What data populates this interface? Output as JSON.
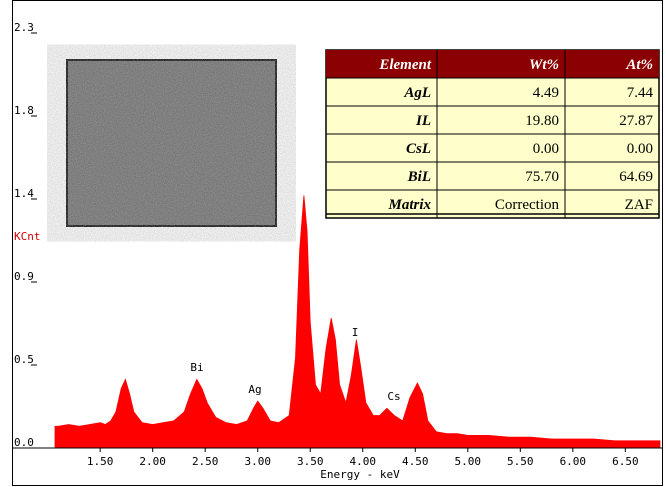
{
  "chart_data": {
    "type": "area",
    "xlabel": "Energy - keV",
    "ylabel": "KCnt",
    "color": "#ff0000",
    "x": [
      1.07,
      1.1,
      1.2,
      1.3,
      1.4,
      1.5,
      1.55,
      1.6,
      1.65,
      1.7,
      1.74,
      1.78,
      1.82,
      1.9,
      2.0,
      2.1,
      2.2,
      2.3,
      2.36,
      2.42,
      2.47,
      2.52,
      2.6,
      2.7,
      2.8,
      2.9,
      2.96,
      3.0,
      3.05,
      3.12,
      3.2,
      3.3,
      3.36,
      3.4,
      3.44,
      3.47,
      3.5,
      3.55,
      3.6,
      3.65,
      3.7,
      3.74,
      3.78,
      3.84,
      3.89,
      3.94,
      3.98,
      4.03,
      4.1,
      4.16,
      4.23,
      4.3,
      4.38,
      4.45,
      4.52,
      4.57,
      4.62,
      4.7,
      4.8,
      4.9,
      5.0,
      5.2,
      5.4,
      5.6,
      5.8,
      6.0,
      6.2,
      6.4,
      6.6,
      6.83
    ],
    "values": [
      0.12,
      0.12,
      0.13,
      0.12,
      0.13,
      0.14,
      0.13,
      0.15,
      0.2,
      0.33,
      0.38,
      0.3,
      0.2,
      0.14,
      0.13,
      0.14,
      0.15,
      0.2,
      0.3,
      0.38,
      0.33,
      0.25,
      0.17,
      0.14,
      0.13,
      0.15,
      0.22,
      0.26,
      0.22,
      0.15,
      0.14,
      0.18,
      0.5,
      1.1,
      1.4,
      1.2,
      0.7,
      0.35,
      0.3,
      0.55,
      0.72,
      0.6,
      0.35,
      0.25,
      0.4,
      0.6,
      0.45,
      0.25,
      0.18,
      0.18,
      0.22,
      0.18,
      0.15,
      0.28,
      0.36,
      0.3,
      0.15,
      0.09,
      0.08,
      0.08,
      0.07,
      0.07,
      0.06,
      0.06,
      0.05,
      0.05,
      0.05,
      0.04,
      0.04,
      0.04
    ],
    "xlim": [
      1.07,
      6.83
    ],
    "xticks": [
      {
        "value": 1.5,
        "label": "1.50"
      },
      {
        "value": 2,
        "label": "2.00"
      },
      {
        "value": 2.5,
        "label": "2.50"
      },
      {
        "value": 3,
        "label": "3.00"
      },
      {
        "value": 3.5,
        "label": "3.50"
      },
      {
        "value": 4,
        "label": "4.00"
      },
      {
        "value": 4.5,
        "label": "4.50"
      },
      {
        "value": 5,
        "label": "5.00"
      },
      {
        "value": 5.5,
        "label": "5.50"
      },
      {
        "value": 6,
        "label": "6.00"
      },
      {
        "value": 6.5,
        "label": "6.50"
      }
    ],
    "ylim": [
      0,
      2.3
    ],
    "yticks": [
      {
        "value": 0,
        "label": "0.0"
      },
      {
        "value": 0.46,
        "label": "0.5"
      },
      {
        "value": 0.92,
        "label": "0.9"
      },
      {
        "value": 1.38,
        "label": "1.4"
      },
      {
        "value": 1.84,
        "label": "1.8"
      },
      {
        "value": 2.3,
        "label": "2.3"
      }
    ],
    "annotations": [
      "Bi",
      "Ag",
      "I",
      "Cs"
    ]
  },
  "table": {
    "columns": [
      "Element",
      "Wt%",
      "At%"
    ],
    "rows": [
      [
        "AgL",
        "4.49",
        "7.44"
      ],
      [
        "IL",
        "19.80",
        "27.87"
      ],
      [
        "CsL",
        "0.00",
        "0.00"
      ],
      [
        "BiL",
        "75.70",
        "64.69"
      ],
      [
        "Matrix",
        "Correction",
        "ZAF"
      ]
    ]
  }
}
